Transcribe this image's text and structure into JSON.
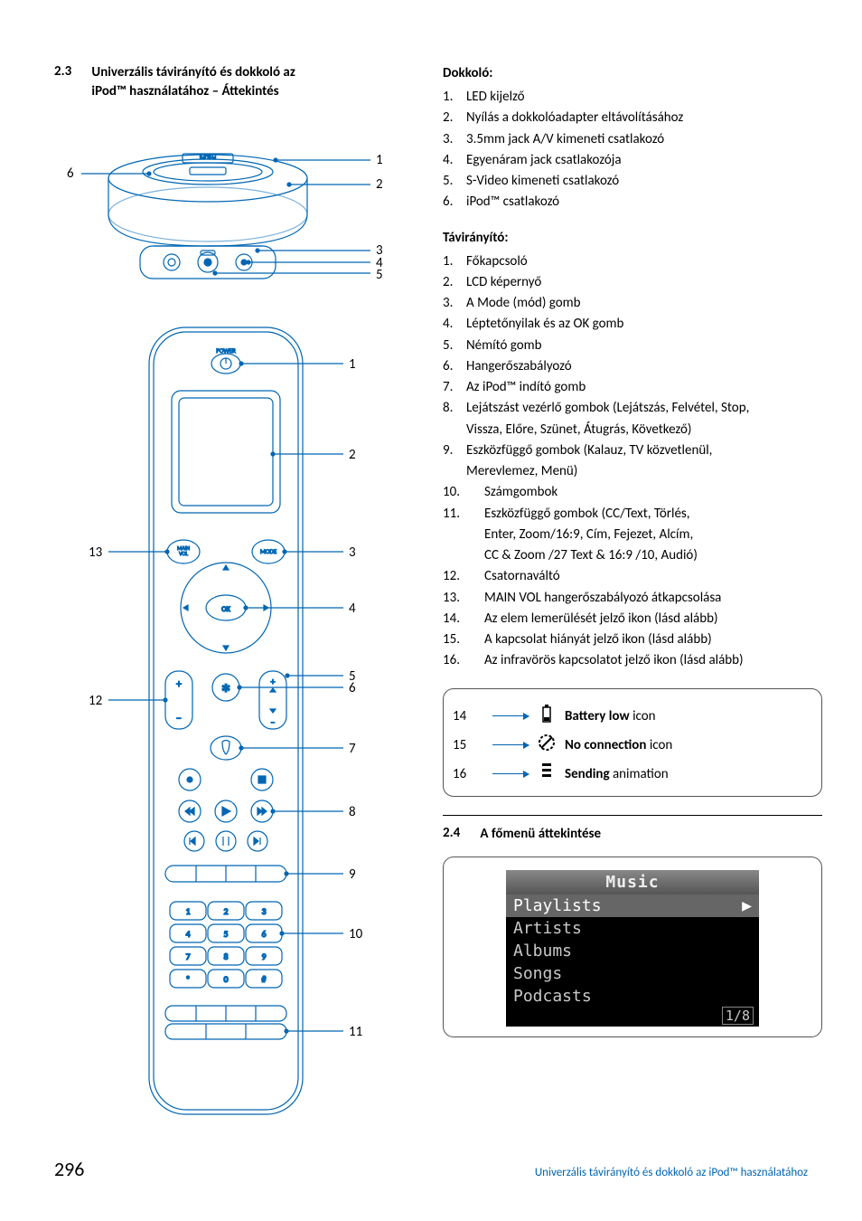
{
  "colors": {
    "accent": "#0066b3",
    "rule": "#000000",
    "text": "#000000",
    "lcd_bg": "#000000",
    "lcd_text": "#c8c8c8"
  },
  "header": {
    "num": "2.3",
    "title_line1": "Univerzális távirányító és dokkoló az",
    "title_line2": "iPod™ használatához – Áttekintés"
  },
  "dock_callouts": {
    "r1": "1",
    "r2": "2",
    "r3": "3",
    "r4": "4",
    "r5": "5",
    "l6": "6"
  },
  "remote_callouts": {
    "r1": "1",
    "r2": "2",
    "r3": "3",
    "r4": "4",
    "r5": "5",
    "r6": "6",
    "r7": "7",
    "r8": "8",
    "r9": "9",
    "r10": "10",
    "r11": "11",
    "l12": "12",
    "l13": "13"
  },
  "dock": {
    "heading": "Dokkoló:",
    "items": [
      {
        "n": "1.",
        "t": "LED kijelző"
      },
      {
        "n": "2.",
        "t": "Nyílás a dokkolóadapter eltávolításához"
      },
      {
        "n": "3.",
        "t": "3.5mm jack A/V kimeneti csatlakozó"
      },
      {
        "n": "4.",
        "t": "Egyenáram jack csatlakozója"
      },
      {
        "n": "5.",
        "t": "S-Video kimeneti csatlakozó"
      },
      {
        "n": "6.",
        "t": "iPod™ csatlakozó"
      }
    ]
  },
  "remote": {
    "heading": "Távirányító:",
    "items1": [
      {
        "n": "1.",
        "t": "Főkapcsoló"
      },
      {
        "n": "2.",
        "t": "LCD képernyő"
      },
      {
        "n": "3.",
        "t": "A Mode (mód) gomb"
      },
      {
        "n": "4.",
        "t": "Léptetőnyilak és az OK gomb"
      },
      {
        "n": "5.",
        "t": "Némító gomb"
      },
      {
        "n": "6.",
        "t": "Hangerőszabályozó"
      },
      {
        "n": "7.",
        "t": "Az iPod™ indító gomb"
      }
    ],
    "item8": {
      "n": "8.",
      "t": "Lejátszást vezérlő gombok (Lejátszás, Felvétel, Stop,",
      "t2": "Vissza, Előre, Szünet, Átugrás, Következő)"
    },
    "item9": {
      "n": "9.",
      "t": "Eszközfüggő gombok (Kalauz, TV közvetlenül,",
      "t2": "Merevlemez, Menü)"
    },
    "items2": [
      {
        "n": "10.",
        "t": "Számgombok"
      }
    ],
    "item11": {
      "n": "11.",
      "t": "Eszközfüggő gombok (CC/Text, Törlés,",
      "t2": "Enter, Zoom/16:9, Cím, Fejezet, Alcím,",
      "t3": "CC & Zoom /27 Text & 16:9 /10, Audió)"
    },
    "items3": [
      {
        "n": "12.",
        "t": "Csatornaváltó"
      },
      {
        "n": "13.",
        "t": "MAIN VOL hangerőszabályozó átkapcsolása"
      },
      {
        "n": "14.",
        "t": "Az elem lemerülését jelző ikon (lásd alább)"
      },
      {
        "n": "15.",
        "t": "A kapcsolat hiányát jelző ikon (lásd alább)"
      },
      {
        "n": "16.",
        "t": "Az infravörös kapcsolatot jelző ikon (lásd alább)"
      }
    ]
  },
  "iconbox": {
    "rows": [
      {
        "idx": "14",
        "bold": "Battery low",
        "rest": " icon"
      },
      {
        "idx": "15",
        "bold": "No connection",
        "rest": " icon"
      },
      {
        "idx": "16",
        "bold": "Sending",
        "rest": " animation"
      }
    ]
  },
  "section24": {
    "num": "2.4",
    "title": "A főmenü áttekintése"
  },
  "lcd_menu": {
    "title": "Music",
    "rows": [
      "Playlists",
      "Artists",
      "Albums",
      "Songs",
      "Podcasts"
    ],
    "selected": 0,
    "pager": "1/8"
  },
  "footer": {
    "page": "296",
    "text": "Univerzális távirányító és dokkoló az iPod™ használatához"
  },
  "remote_labels": {
    "power": "POWER",
    "main_vol": "MAIN\nVOL",
    "mode": "MODE",
    "ok": "OK"
  },
  "keypad": [
    "1",
    "2",
    "3",
    "4",
    "5",
    "6",
    "7",
    "8",
    "9",
    "*",
    "0",
    "#"
  ]
}
